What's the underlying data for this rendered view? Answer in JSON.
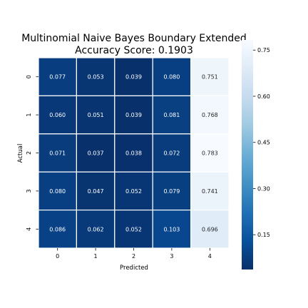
{
  "chart_data": {
    "type": "heatmap",
    "title_line1": "Multinomial Naive Bayes Boundary Extended",
    "title_line2": "Accuracy Score: 0.1903",
    "xlabel": "Predicted",
    "ylabel": "Actual",
    "x_categories": [
      "0",
      "1",
      "2",
      "3",
      "4"
    ],
    "y_categories": [
      "0",
      "1",
      "2",
      "3",
      "4"
    ],
    "values": [
      [
        0.077,
        0.053,
        0.039,
        0.08,
        0.751
      ],
      [
        0.06,
        0.051,
        0.039,
        0.081,
        0.768
      ],
      [
        0.071,
        0.037,
        0.038,
        0.072,
        0.783
      ],
      [
        0.08,
        0.047,
        0.052,
        0.079,
        0.741
      ],
      [
        0.086,
        0.062,
        0.052,
        0.103,
        0.696
      ]
    ],
    "cell_labels": [
      [
        "0.077",
        "0.053",
        "0.039",
        "0.080",
        "0.751"
      ],
      [
        "0.060",
        "0.051",
        "0.039",
        "0.081",
        "0.768"
      ],
      [
        "0.071",
        "0.037",
        "0.038",
        "0.072",
        "0.783"
      ],
      [
        "0.080",
        "0.047",
        "0.052",
        "0.079",
        "0.741"
      ],
      [
        "0.086",
        "0.062",
        "0.052",
        "0.103",
        "0.696"
      ]
    ],
    "colormap": "Blues_r",
    "colorbar": {
      "min": 0.037,
      "max": 0.783,
      "ticks": [
        0.15,
        0.3,
        0.45,
        0.6,
        0.75
      ],
      "tick_labels": [
        "0.15",
        "0.30",
        "0.45",
        "0.60",
        "0.75"
      ]
    }
  }
}
